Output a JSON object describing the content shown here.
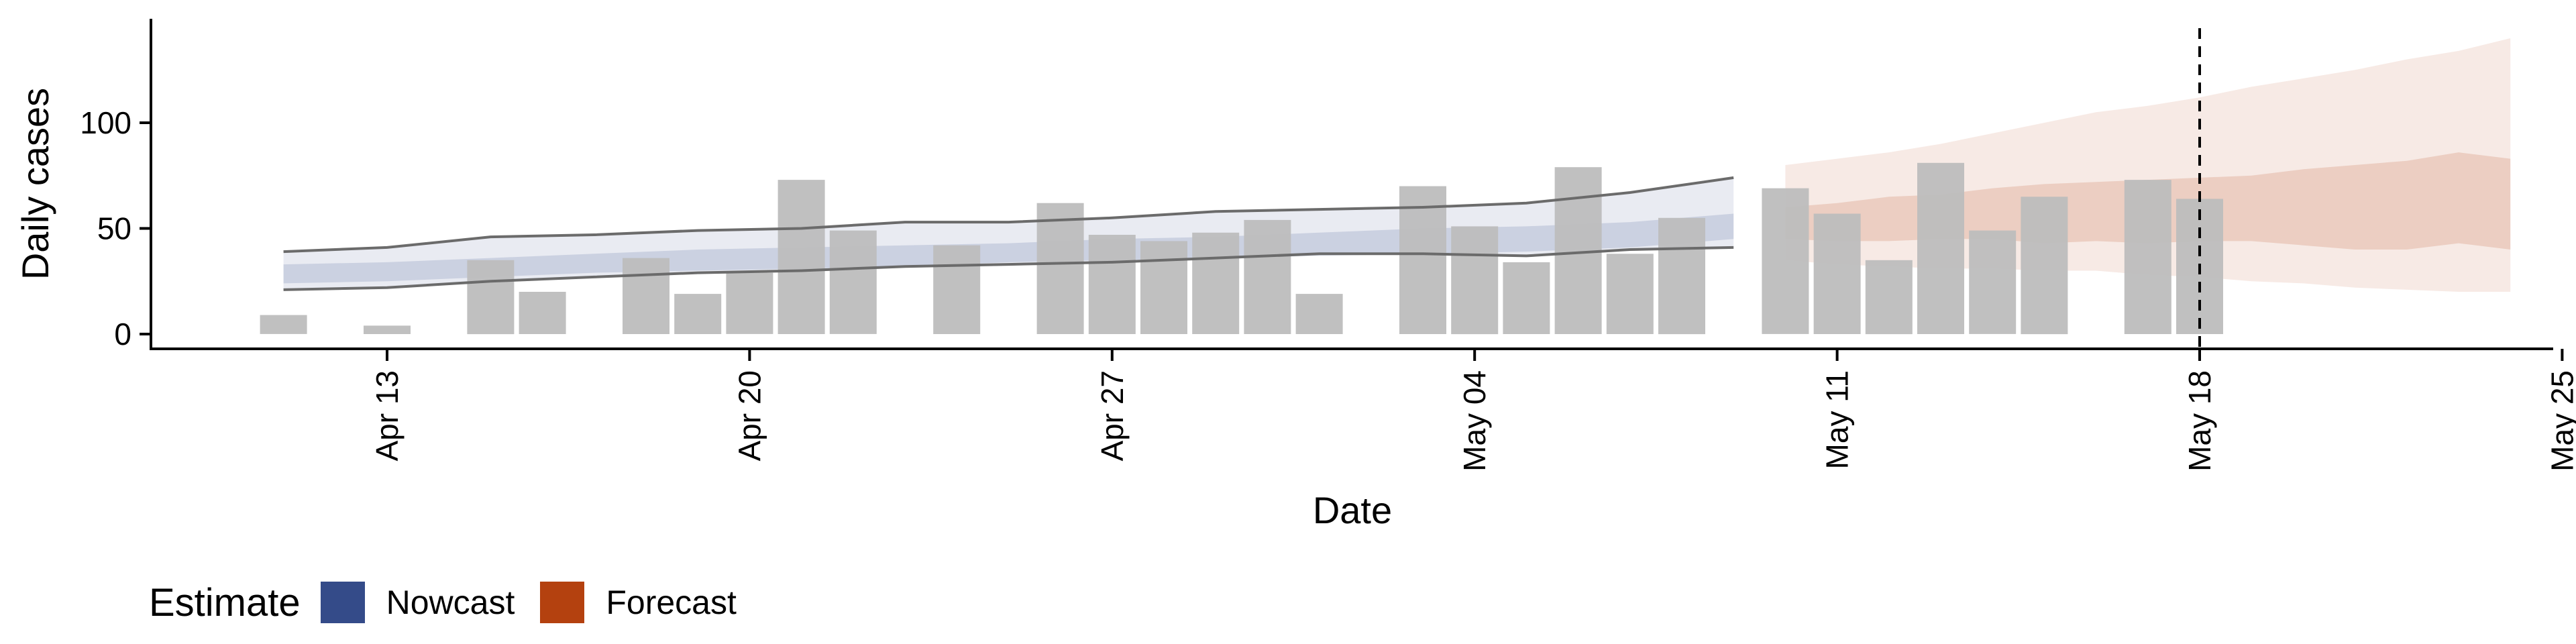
{
  "chart_data": {
    "type": "bar",
    "title": "",
    "xlabel": "Date",
    "ylabel": "Daily cases",
    "x_ticks": [
      "Apr 13",
      "Apr 20",
      "Apr 27",
      "May 04",
      "May 11",
      "May 18",
      "May 25"
    ],
    "y_ticks": [
      0,
      50,
      100
    ],
    "ylim": [
      -6,
      148
    ],
    "grid": false,
    "vline_date": "May 18",
    "bar_color": "#bdbdbd",
    "observed_cases": [
      {
        "date": "Apr 11",
        "value": 9
      },
      {
        "date": "Apr 13",
        "value": 4
      },
      {
        "date": "Apr 15",
        "value": 35
      },
      {
        "date": "Apr 16",
        "value": 20
      },
      {
        "date": "Apr 18",
        "value": 36
      },
      {
        "date": "Apr 19",
        "value": 19
      },
      {
        "date": "Apr 20",
        "value": 29
      },
      {
        "date": "Apr 21",
        "value": 73
      },
      {
        "date": "Apr 22",
        "value": 49
      },
      {
        "date": "Apr 24",
        "value": 42
      },
      {
        "date": "Apr 26",
        "value": 62
      },
      {
        "date": "Apr 27",
        "value": 47
      },
      {
        "date": "Apr 28",
        "value": 44
      },
      {
        "date": "Apr 29",
        "value": 48
      },
      {
        "date": "Apr 30",
        "value": 54
      },
      {
        "date": "May 01",
        "value": 19
      },
      {
        "date": "May 03",
        "value": 70
      },
      {
        "date": "May 04",
        "value": 51
      },
      {
        "date": "May 05",
        "value": 34
      },
      {
        "date": "May 06",
        "value": 79
      },
      {
        "date": "May 07",
        "value": 38
      },
      {
        "date": "May 08",
        "value": 55
      },
      {
        "date": "May 10",
        "value": 69
      },
      {
        "date": "May 11",
        "value": 57
      },
      {
        "date": "May 12",
        "value": 35
      },
      {
        "date": "May 13",
        "value": 81
      },
      {
        "date": "May 14",
        "value": 49
      },
      {
        "date": "May 15",
        "value": 65
      },
      {
        "date": "May 17",
        "value": 73
      },
      {
        "date": "May 18",
        "value": 64
      }
    ],
    "series": [
      {
        "name": "Nowcast",
        "color": "#344b89",
        "x": [
          "Apr 11",
          "Apr 13",
          "Apr 15",
          "Apr 17",
          "Apr 19",
          "Apr 21",
          "Apr 23",
          "Apr 25",
          "Apr 27",
          "Apr 29",
          "May 01",
          "May 03",
          "May 05",
          "May 07",
          "May 09"
        ],
        "outer_upper": [
          39,
          41,
          46,
          47,
          49,
          50,
          53,
          53,
          55,
          58,
          59,
          60,
          62,
          67,
          74
        ],
        "outer_lower": [
          21,
          22,
          25,
          27,
          29,
          30,
          32,
          33,
          34,
          36,
          38,
          38,
          37,
          40,
          41
        ],
        "inner_upper": [
          33,
          34,
          36,
          38,
          40,
          41,
          42,
          43,
          45,
          46,
          48,
          50,
          51,
          53,
          57
        ],
        "inner_lower": [
          24,
          25,
          27,
          29,
          30,
          31,
          32,
          34,
          35,
          36,
          37,
          38,
          39,
          41,
          45
        ]
      },
      {
        "name": "Forecast",
        "color": "#b4410f",
        "x": [
          "May 10",
          "May 11",
          "May 12",
          "May 13",
          "May 14",
          "May 15",
          "May 16",
          "May 17",
          "May 18",
          "May 19",
          "May 20",
          "May 21",
          "May 22",
          "May 23",
          "May 24"
        ],
        "outer_upper": [
          80,
          83,
          86,
          90,
          95,
          100,
          105,
          108,
          112,
          117,
          121,
          125,
          130,
          134,
          140
        ],
        "outer_lower": [
          35,
          33,
          32,
          31,
          31,
          30,
          30,
          28,
          27,
          25,
          24,
          22,
          21,
          20,
          20
        ],
        "inner_upper": [
          60,
          62,
          65,
          66,
          69,
          71,
          72,
          73,
          74,
          75,
          78,
          80,
          82,
          86,
          83
        ],
        "inner_lower": [
          45,
          44,
          44,
          45,
          45,
          43,
          44,
          43,
          44,
          44,
          42,
          40,
          40,
          43,
          40
        ]
      }
    ]
  },
  "legend": {
    "title": "Estimate",
    "items": [
      {
        "label": "Nowcast",
        "color": "#344b89"
      },
      {
        "label": "Forecast",
        "color": "#b4410f"
      }
    ]
  }
}
